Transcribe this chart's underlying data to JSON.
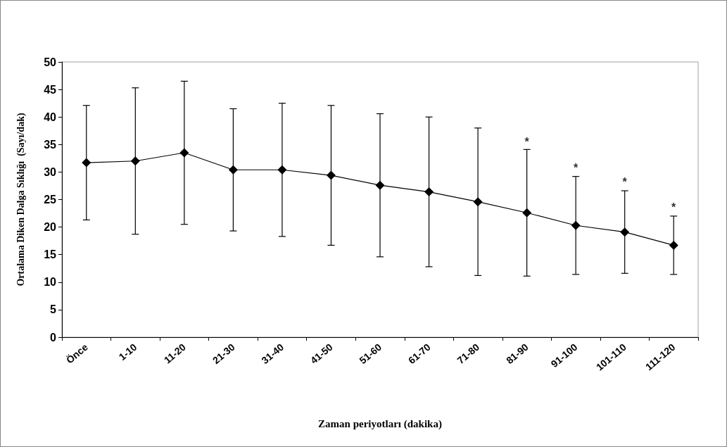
{
  "chart_data": {
    "type": "line",
    "xlabel": "Zaman periyotları (dakika)",
    "ylabel": "Ortalama Diken Dalga Sıklığı  (Sayı/dak)",
    "categories": [
      "Önce",
      "1-10",
      "11-20",
      "21-30",
      "31-40",
      "41-50",
      "51-60",
      "61-70",
      "71-80",
      "81-90",
      "91-100",
      "101-110",
      "111-120"
    ],
    "series": [
      {
        "color": "#000000",
        "values": [
          31.7,
          32.0,
          33.5,
          30.4,
          30.4,
          29.4,
          27.6,
          26.4,
          24.6,
          22.6,
          20.3,
          19.1,
          16.7
        ],
        "errors": [
          10.4,
          13.3,
          13.0,
          11.1,
          12.1,
          12.7,
          13.0,
          13.6,
          13.4,
          11.5,
          8.9,
          7.5,
          5.3
        ]
      }
    ],
    "ylim": [
      0,
      50
    ],
    "yticks": [
      0,
      5,
      10,
      15,
      20,
      25,
      30,
      35,
      40,
      45,
      50
    ],
    "grid": false,
    "marker": "diamond",
    "line_style": "solid",
    "annotations": [
      {
        "text": "*",
        "x": "81-90",
        "y": 34.0
      },
      {
        "text": "*",
        "x": "91-100",
        "y": 29.2
      },
      {
        "text": "*",
        "x": "101-110",
        "y": 26.6
      },
      {
        "text": "*",
        "x": "111-120",
        "y": 22.0
      }
    ]
  }
}
